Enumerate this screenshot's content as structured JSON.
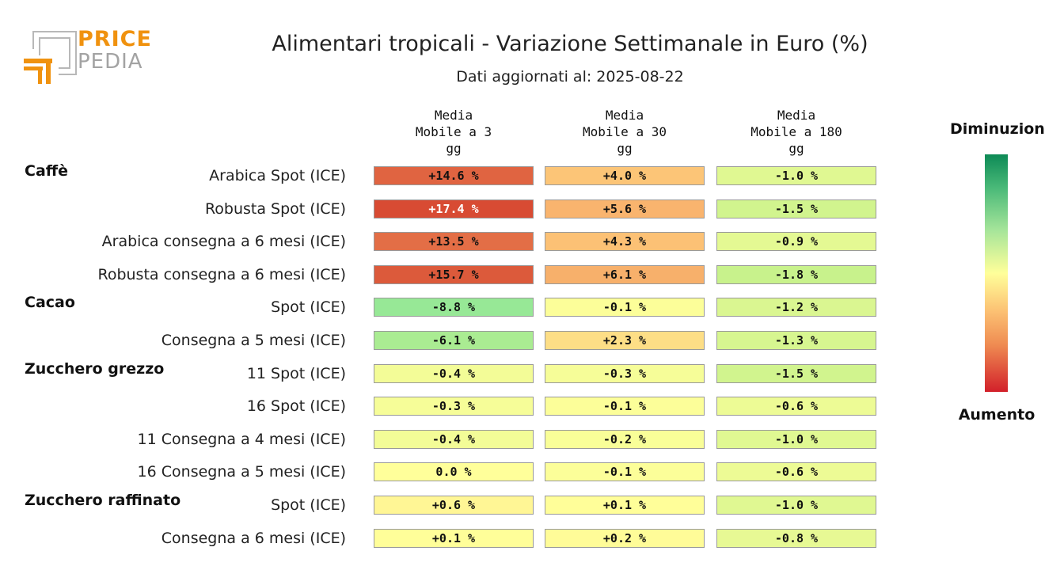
{
  "logo": {
    "line1": "PRICE",
    "line2": "PEDIA"
  },
  "chart_data": {
    "type": "table",
    "title": "Alimentari tropicali - Variazione Settimanale in Euro (%)",
    "subtitle": "Dati aggiornati al: 2025-08-22",
    "columns": [
      [
        "Media",
        "Mobile a 3",
        "gg"
      ],
      [
        "Media",
        "Mobile a 30",
        "gg"
      ],
      [
        "Media",
        "Mobile a 180",
        "gg"
      ]
    ],
    "groups": [
      {
        "name": "Caffè",
        "rows": [
          {
            "label": "Arabica Spot (ICE)",
            "values": [
              14.6,
              4.0,
              -1.0
            ],
            "display": [
              "+14.6 %",
              "+4.0 %",
              "-1.0 %"
            ]
          },
          {
            "label": "Robusta Spot (ICE)",
            "values": [
              17.4,
              5.6,
              -1.5
            ],
            "display": [
              "+17.4 %",
              "+5.6 %",
              "-1.5 %"
            ]
          },
          {
            "label": "Arabica consegna a 6 mesi (ICE)",
            "values": [
              13.5,
              4.3,
              -0.9
            ],
            "display": [
              "+13.5 %",
              "+4.3 %",
              "-0.9 %"
            ]
          },
          {
            "label": "Robusta consegna a 6 mesi (ICE)",
            "values": [
              15.7,
              6.1,
              -1.8
            ],
            "display": [
              "+15.7 %",
              "+6.1 %",
              "-1.8 %"
            ]
          }
        ]
      },
      {
        "name": "Cacao",
        "rows": [
          {
            "label": "Spot (ICE)",
            "values": [
              -8.8,
              -0.1,
              -1.2
            ],
            "display": [
              "-8.8 %",
              "-0.1 %",
              "-1.2 %"
            ]
          },
          {
            "label": "Consegna a 5 mesi (ICE)",
            "values": [
              -6.1,
              2.3,
              -1.3
            ],
            "display": [
              "-6.1 %",
              "+2.3 %",
              "-1.3 %"
            ]
          }
        ]
      },
      {
        "name": "Zucchero grezzo",
        "rows": [
          {
            "label": "11 Spot (ICE)",
            "values": [
              -0.4,
              -0.3,
              -1.5
            ],
            "display": [
              "-0.4 %",
              "-0.3 %",
              "-1.5 %"
            ]
          },
          {
            "label": "16 Spot (ICE)",
            "values": [
              -0.3,
              -0.1,
              -0.6
            ],
            "display": [
              "-0.3 %",
              "-0.1 %",
              "-0.6 %"
            ]
          },
          {
            "label": "11 Consegna a 4 mesi (ICE)",
            "values": [
              -0.4,
              -0.2,
              -1.0
            ],
            "display": [
              "-0.4 %",
              "-0.2 %",
              "-1.0 %"
            ]
          },
          {
            "label": "16 Consegna a 5 mesi (ICE)",
            "values": [
              0.0,
              -0.1,
              -0.6
            ],
            "display": [
              "0.0 %",
              "-0.1 %",
              "-0.6 %"
            ]
          }
        ]
      },
      {
        "name": "Zucchero raffinato",
        "rows": [
          {
            "label": "Spot (ICE)",
            "values": [
              0.6,
              0.1,
              -1.0
            ],
            "display": [
              "+0.6 %",
              "+0.1 %",
              "-1.0 %"
            ]
          },
          {
            "label": "Consegna a 6 mesi (ICE)",
            "values": [
              0.1,
              0.2,
              -0.8
            ],
            "display": [
              "+0.1 %",
              "+0.2 %",
              "-0.8 %"
            ]
          }
        ]
      }
    ],
    "legend": {
      "top_label": "Diminuzione",
      "bottom_label": "Aumento"
    },
    "colors": {
      "increase_strong": "#d2202a",
      "increase_mid": "#f7a35f",
      "neutral": "#ffff9a",
      "decrease_mid": "#a6e59a",
      "decrease_strong": "#0d8a56"
    }
  }
}
